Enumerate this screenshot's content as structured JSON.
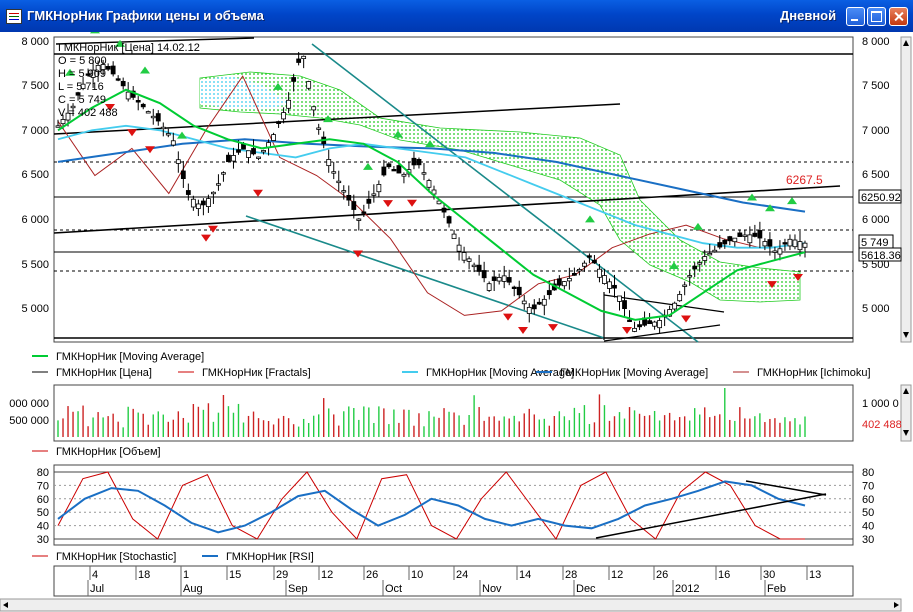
{
  "window": {
    "title": "ГМКНорНик Графики цены и объема",
    "period": "Дневной"
  },
  "price_pane": {
    "legend_head": "ГМКНорНик [Цена] 14.02.12",
    "ohlc": [
      "O = 5 800",
      "H = 5 909",
      "L = 5 716",
      "C = 5 749",
      "V = 402 488"
    ],
    "y_ticks": [
      "8 000",
      "7 500",
      "7 000",
      "6 500",
      "6 000",
      "5 500",
      "5 000"
    ],
    "labels": {
      "level_6267": "6267.5",
      "last_6250": "6250.92",
      "last_close": "5 749",
      "last_5618": "5618.36"
    }
  },
  "legend_rows": [
    [
      {
        "text": "ГМКНорНик [Moving Average]",
        "color": "#00cc33"
      }
    ],
    [
      {
        "text": "ГМКНорНик [Цена]",
        "color": "#000000"
      },
      {
        "text": "ГМКНорНик [Fractals]",
        "color": "#cc0000"
      },
      {
        "text": "ГМКНорНик [Moving Average]",
        "color": "#44ccee"
      },
      {
        "text": "ГМКНорНик [Moving Average]",
        "color": "#1a6fc4"
      },
      {
        "text": "ГМКНорНик [Ichimoku]",
        "color": "#aa2222"
      }
    ]
  ],
  "volume_pane": {
    "y_ticks_left": [
      "000 000",
      "500 000"
    ],
    "y_tick_right": "1 000 0",
    "last_value": "402 488",
    "legend": {
      "text": "ГМКНорНик [Объем]",
      "color": "#cc0000"
    }
  },
  "osc_pane": {
    "y_ticks": [
      "80",
      "70",
      "60",
      "50",
      "40",
      "30"
    ],
    "legend": [
      {
        "text": "ГМКНорНик [Stochastic]",
        "color": "#cc0000"
      },
      {
        "text": "ГМКНорНик [RSI]",
        "color": "#1a6fc4"
      }
    ]
  },
  "time_axis": {
    "days": [
      "4",
      "18",
      "1",
      "15",
      "29",
      "12",
      "26",
      "10",
      "24",
      "14",
      "28",
      "12",
      "26",
      "16",
      "30",
      "13"
    ],
    "months": [
      "Jul",
      "Aug",
      "Sep",
      "Oct",
      "Nov",
      "Dec",
      "2012",
      "Feb"
    ]
  },
  "colors": {
    "green_ma": "#00cc33",
    "cyan_ma": "#44ccee",
    "blue_ma": "#1a6fc4",
    "fractal_up": "#22cc44",
    "fractal_down": "#dd1111",
    "trendline": "#1a8a8a"
  },
  "chart_data": {
    "type": "line",
    "y_range": [
      4700,
      8000
    ],
    "price_path": [
      7050,
      7250,
      7600,
      7750,
      7600,
      7400,
      7250,
      7100,
      6900,
      6300,
      6150,
      6350,
      6700,
      6800,
      6700,
      6950,
      7300,
      7900,
      7100,
      6600,
      6300,
      6000,
      6300,
      6600,
      6500,
      6650,
      6400,
      6050,
      5700,
      5500,
      5300,
      5400,
      5200,
      5000,
      5150,
      5300,
      5400,
      5600,
      5400,
      5200,
      4800,
      4850,
      4900,
      5100,
      5400,
      5600,
      5700,
      5800,
      5850,
      5800,
      5650,
      5800,
      5750
    ],
    "cyan_ma": [
      6900,
      7000,
      7050,
      7000,
      6900,
      6800,
      6750,
      6700,
      6800,
      6850,
      6800,
      6750,
      6700,
      6550,
      6400,
      6250,
      6100,
      5950,
      5850,
      5750,
      5700,
      5700,
      5750
    ],
    "blue_ma": [
      6650,
      6750,
      6850,
      6900,
      6850,
      6820,
      6800,
      6750,
      6650,
      6500,
      6350,
      6200,
      6100
    ],
    "green_ma": [
      7000,
      7250,
      7450,
      7300,
      7050,
      6900,
      6800,
      6850,
      6900,
      6850,
      6650,
      6300,
      6000,
      5700,
      5400,
      5200,
      5000,
      4900,
      4950,
      5200,
      5450,
      5550,
      5650
    ],
    "ichimoku_lag": [
      7100,
      6500,
      6800,
      6300,
      7000,
      7600,
      6700,
      6500,
      6200,
      5800,
      5200,
      4950,
      5000,
      5300,
      5400,
      5700,
      5850,
      5950,
      5800,
      5700
    ],
    "fractal_up_x": [
      70,
      95,
      120,
      145,
      182,
      278,
      328,
      368,
      398,
      430,
      590,
      674,
      698,
      752,
      770,
      792
    ],
    "fractal_down_x": [
      110,
      132,
      150,
      206,
      213,
      258,
      358,
      388,
      412,
      508,
      523,
      553,
      627,
      686,
      772,
      798
    ],
    "volume": [
      520000,
      420000,
      610000,
      880000,
      540000,
      700000,
      430000,
      580000,
      1000000,
      620000,
      480000,
      720000,
      560000,
      380000,
      650000,
      520000,
      470000,
      500000,
      430000,
      560000,
      600000,
      410000,
      480000,
      380000,
      520000
    ],
    "stochastic": [
      40,
      75,
      80,
      45,
      30,
      70,
      78,
      40,
      30,
      60,
      80,
      50,
      30,
      75,
      78,
      40,
      30,
      60,
      80,
      55,
      30,
      70,
      80,
      45,
      30,
      65,
      80,
      70,
      40,
      30,
      30
    ],
    "rsi": [
      45,
      60,
      68,
      66,
      55,
      42,
      35,
      40,
      50,
      62,
      66,
      52,
      40,
      48,
      60,
      55,
      45,
      40,
      45,
      40,
      38,
      45,
      55,
      60,
      66,
      73,
      70,
      60,
      55
    ]
  }
}
